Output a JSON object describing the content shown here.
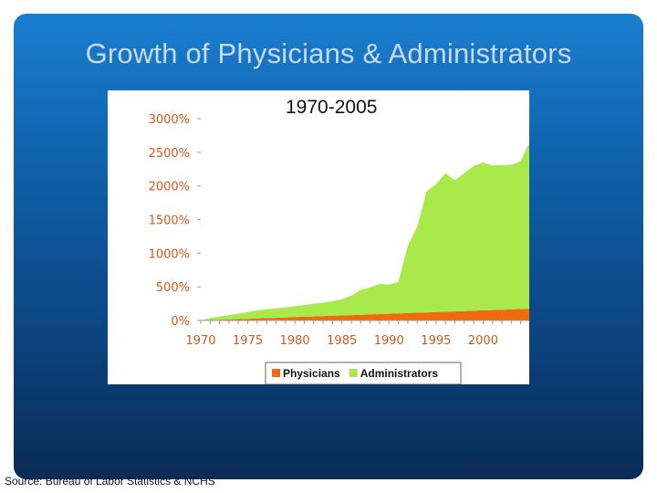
{
  "slide": {
    "title": "Growth of Physicians & Administrators",
    "source": "Source: Bureau of Labor Statistics & NCHS",
    "background_top": "#1a7fd0",
    "background_bottom": "#0a2b55"
  },
  "chart_data": {
    "type": "area",
    "title": "1970-2005",
    "xlabel": "",
    "ylabel": "",
    "x": [
      1970,
      1971,
      1972,
      1973,
      1974,
      1975,
      1976,
      1977,
      1978,
      1979,
      1980,
      1981,
      1982,
      1983,
      1984,
      1985,
      1986,
      1987,
      1988,
      1989,
      1990,
      1991,
      1992,
      1993,
      1994,
      1995,
      1996,
      1997,
      1998,
      1999,
      2000,
      2001,
      2002,
      2003,
      2004,
      2005
    ],
    "xlim": [
      1970,
      2005
    ],
    "ylim": [
      0,
      3000
    ],
    "x_ticks": [
      1970,
      1975,
      1980,
      1985,
      1990,
      1995,
      2000
    ],
    "x_tick_labels": [
      "1970",
      "1975",
      "1980",
      "1985",
      "1990",
      "1995",
      "2000"
    ],
    "y_ticks": [
      0,
      500,
      1000,
      1500,
      2000,
      2500,
      3000
    ],
    "y_tick_labels": [
      "0%",
      "500%",
      "1000%",
      "1500%",
      "2000%",
      "2500%",
      "3000%"
    ],
    "grid": false,
    "stacked": true,
    "legend_position": "bottom",
    "series": [
      {
        "name": "Physicians",
        "color": "#f06a10",
        "values": [
          0,
          5,
          10,
          15,
          20,
          25,
          30,
          35,
          40,
          45,
          50,
          55,
          60,
          65,
          70,
          75,
          80,
          85,
          90,
          95,
          100,
          105,
          110,
          115,
          120,
          125,
          130,
          135,
          140,
          145,
          150,
          155,
          160,
          165,
          170,
          175
        ]
      },
      {
        "name": "Administrators",
        "color": "#a9ea4b",
        "values": [
          0,
          30,
          50,
          65,
          80,
          100,
          120,
          130,
          140,
          150,
          160,
          175,
          190,
          200,
          215,
          240,
          290,
          370,
          400,
          450,
          430,
          470,
          1000,
          1280,
          1800,
          1900,
          2060,
          1950,
          2050,
          2150,
          2200,
          2150,
          2150,
          2150,
          2200,
          2500
        ]
      }
    ]
  }
}
